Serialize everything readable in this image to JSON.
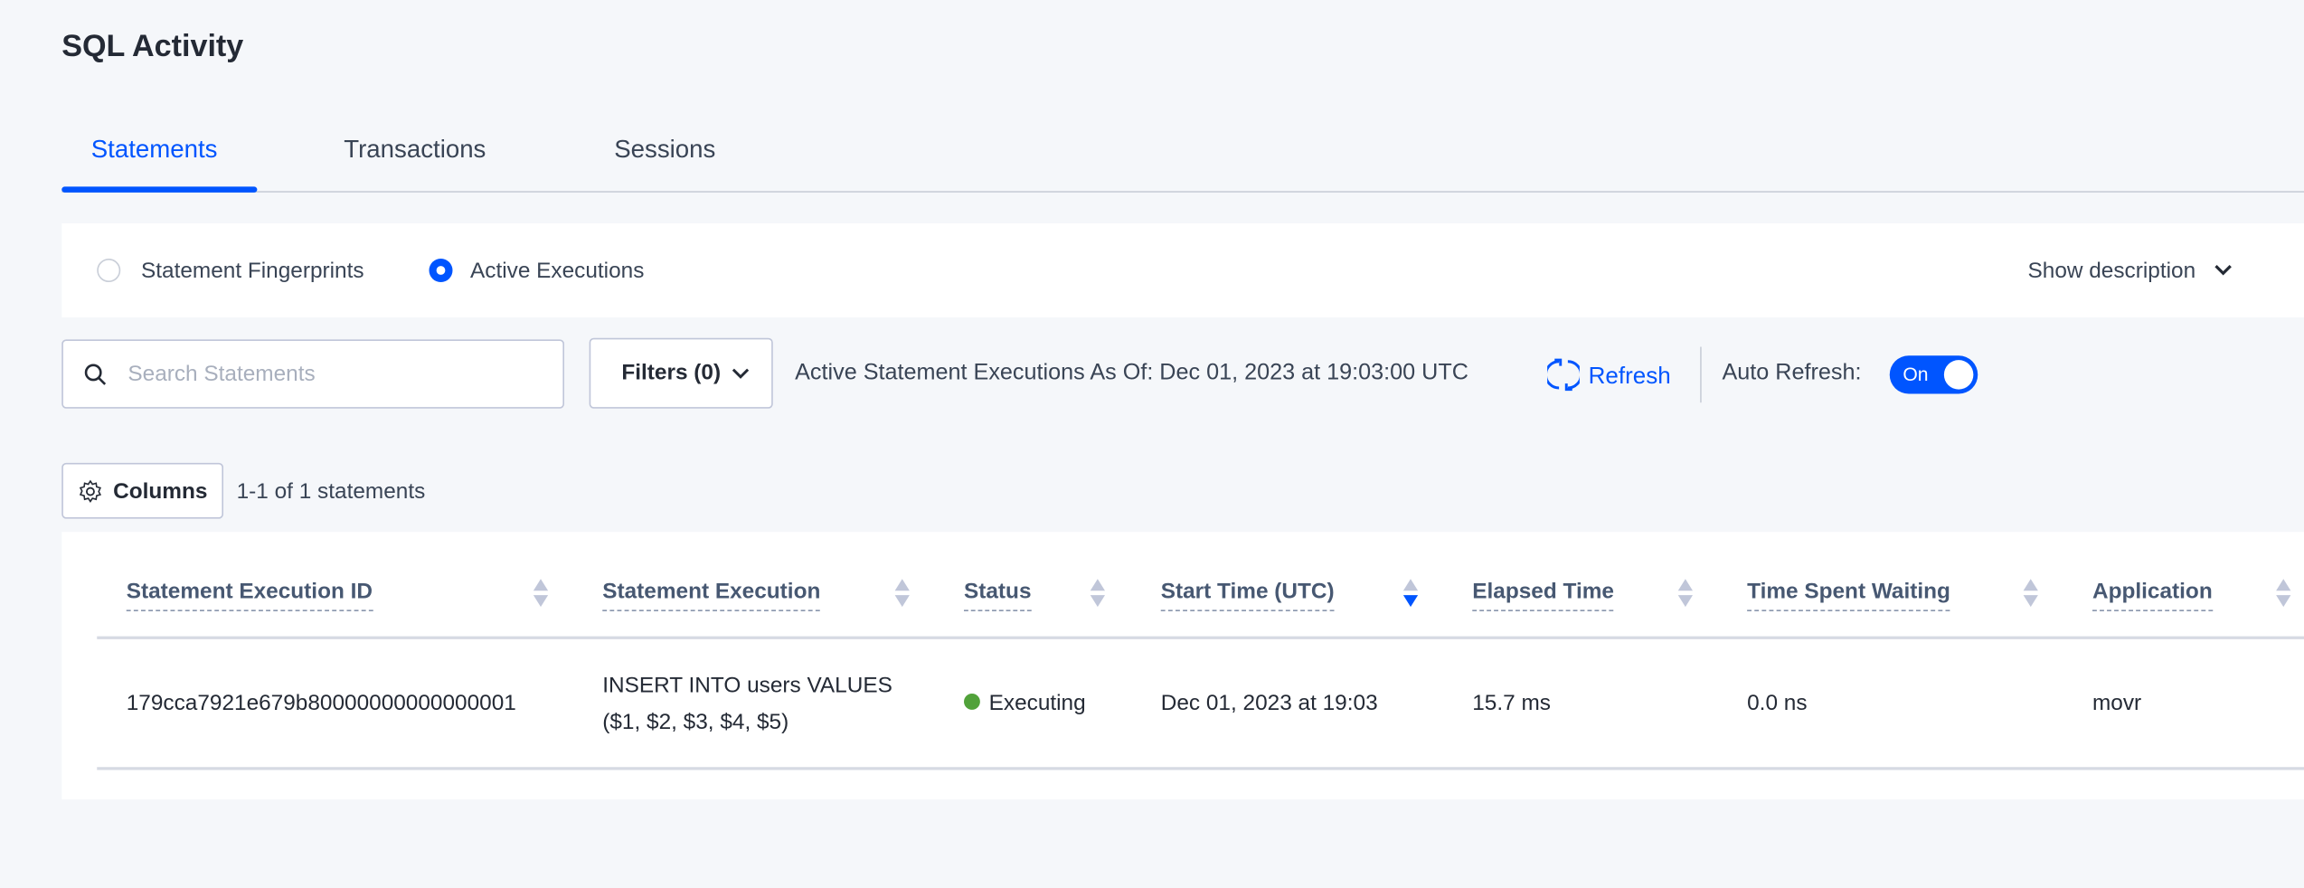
{
  "page": {
    "title": "SQL Activity"
  },
  "tabs": [
    {
      "label": "Statements",
      "active": true
    },
    {
      "label": "Transactions"
    },
    {
      "label": "Sessions"
    }
  ],
  "view": {
    "options": [
      {
        "label": "Statement Fingerprints",
        "selected": false
      },
      {
        "label": "Active Executions",
        "selected": true
      }
    ],
    "show_description": "Show description"
  },
  "toolbar": {
    "search_placeholder": "Search Statements",
    "filters_label": "Filters (0)",
    "as_of": "Active Statement Executions As Of: Dec 01, 2023 at 19:03:00 UTC",
    "refresh_label": "Refresh",
    "auto_refresh_label": "Auto Refresh:",
    "auto_refresh_state": "On"
  },
  "columns_button": "Columns",
  "count_text": "1-1 of 1 statements",
  "table": {
    "headers": [
      "Statement Execution ID",
      "Statement Execution",
      "Status",
      "Start Time (UTC)",
      "Elapsed Time",
      "Time Spent Waiting",
      "Application"
    ],
    "sorted_column": "Start Time (UTC)",
    "sort_direction": "descending",
    "rows": [
      {
        "id": "179cca7921e679b80000000000000001",
        "statement_line1": "INSERT INTO users VALUES",
        "statement_line2": "($1, $2, $3, $4, $5)",
        "status": "Executing",
        "status_color": "#51a23a",
        "start": "Dec 01, 2023 at 19:03",
        "elapsed": "15.7 ms",
        "waiting": "0.0 ns",
        "app": "movr"
      }
    ]
  },
  "colors": {
    "accent": "#0055ff",
    "background": "#f5f7fa"
  }
}
